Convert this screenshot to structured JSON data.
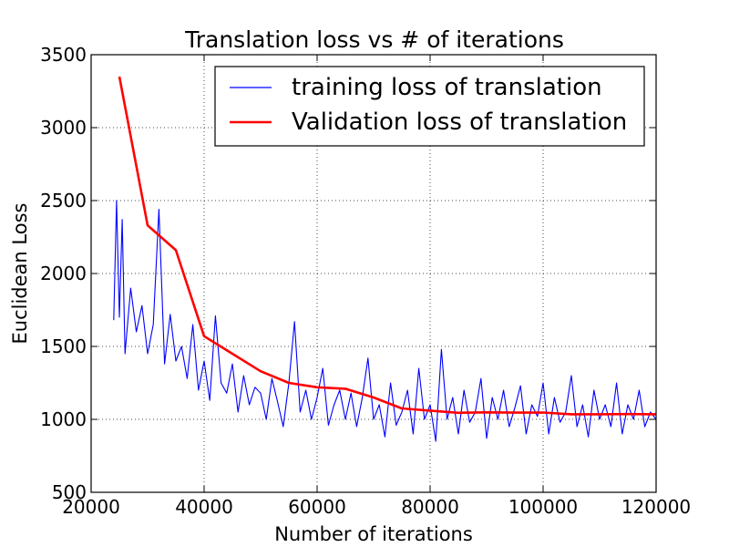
{
  "chart_data": {
    "type": "line",
    "title": "Translation loss vs # of iterations",
    "xlabel": "Number of iterations",
    "ylabel": "Euclidean Loss",
    "xlim": [
      20000,
      120000
    ],
    "ylim": [
      500,
      3500
    ],
    "xticks": [
      "20000",
      "40000",
      "60000",
      "80000",
      "100000",
      "120000"
    ],
    "yticks": [
      "500",
      "1000",
      "1500",
      "2000",
      "2500",
      "3000",
      "3500"
    ],
    "grid": true,
    "legend_position": "top-right",
    "series": [
      {
        "name": "training loss of translation",
        "color": "#0000ff",
        "x": [
          24000,
          24500,
          25000,
          25500,
          26000,
          27000,
          28000,
          29000,
          30000,
          31000,
          32000,
          33000,
          34000,
          35000,
          36000,
          37000,
          38000,
          39000,
          40000,
          41000,
          42000,
          43000,
          44000,
          45000,
          46000,
          47000,
          48000,
          49000,
          50000,
          51000,
          52000,
          53000,
          54000,
          55000,
          56000,
          57000,
          58000,
          59000,
          60000,
          61000,
          62000,
          63000,
          64000,
          65000,
          66000,
          67000,
          68000,
          69000,
          70000,
          71000,
          72000,
          73000,
          74000,
          75000,
          76000,
          77000,
          78000,
          79000,
          80000,
          81000,
          82000,
          83000,
          84000,
          85000,
          86000,
          87000,
          88000,
          89000,
          90000,
          91000,
          92000,
          93000,
          94000,
          95000,
          96000,
          97000,
          98000,
          99000,
          100000,
          101000,
          102000,
          103000,
          104000,
          105000,
          106000,
          107000,
          108000,
          109000,
          110000,
          111000,
          112000,
          113000,
          114000,
          115000,
          116000,
          117000,
          118000,
          119000,
          120000
        ],
        "y": [
          1680,
          2500,
          1700,
          2370,
          1450,
          1900,
          1600,
          1780,
          1450,
          1650,
          2440,
          1380,
          1720,
          1400,
          1500,
          1280,
          1650,
          1200,
          1400,
          1130,
          1710,
          1250,
          1180,
          1380,
          1050,
          1300,
          1100,
          1220,
          1180,
          1000,
          1280,
          1120,
          950,
          1250,
          1670,
          1050,
          1200,
          1000,
          1150,
          1350,
          960,
          1100,
          1200,
          1000,
          1180,
          950,
          1150,
          1420,
          1000,
          1100,
          880,
          1250,
          960,
          1050,
          1200,
          900,
          1350,
          1000,
          1100,
          850,
          1480,
          1000,
          1150,
          900,
          1200,
          980,
          1050,
          1280,
          870,
          1150,
          1000,
          1200,
          950,
          1080,
          1230,
          900,
          1100,
          1020,
          1250,
          900,
          1150,
          980,
          1050,
          1300,
          950,
          1100,
          880,
          1200,
          1000,
          1100,
          950,
          1250,
          900,
          1100,
          1000,
          1200,
          950,
          1050,
          1000
        ]
      },
      {
        "name": "Validation loss of translation",
        "color": "#ff0000",
        "x": [
          25000,
          30000,
          35000,
          40000,
          45000,
          50000,
          55000,
          60000,
          65000,
          70000,
          75000,
          80000,
          85000,
          90000,
          95000,
          100000,
          105000,
          110000,
          115000,
          120000
        ],
        "y": [
          3350,
          2330,
          2160,
          1570,
          1450,
          1330,
          1250,
          1220,
          1210,
          1150,
          1075,
          1060,
          1045,
          1048,
          1046,
          1047,
          1035,
          1035,
          1036,
          1035
        ]
      }
    ]
  }
}
